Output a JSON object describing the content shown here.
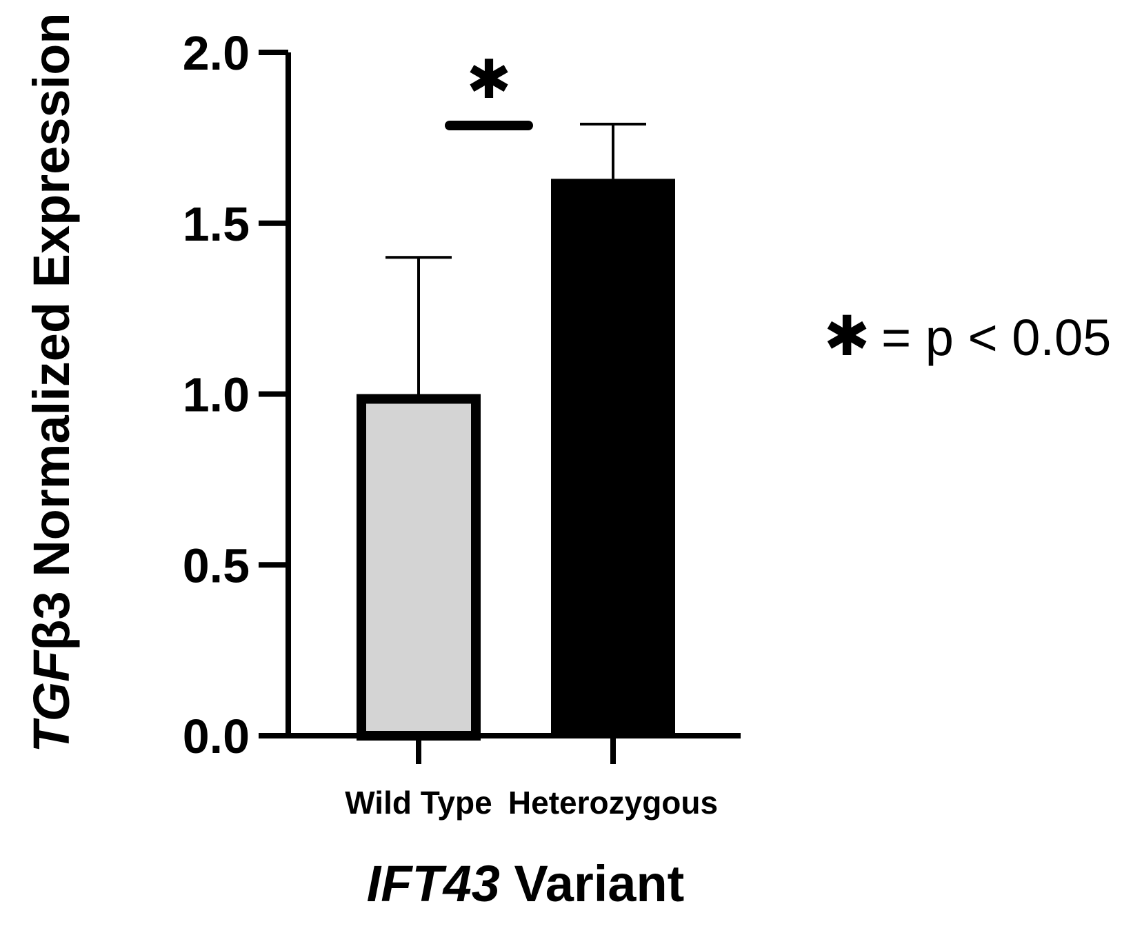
{
  "chart_data": {
    "type": "bar",
    "categories": [
      "Wild Type",
      "Heterozygous"
    ],
    "series": [
      {
        "values": [
          1.0,
          1.63
        ],
        "error_upper": [
          1.4,
          1.79
        ]
      }
    ],
    "bar_colors": [
      "#d4d4d4",
      "#000000"
    ],
    "ylim": [
      0,
      2.0
    ],
    "yticks": [
      "0.0",
      "0.5",
      "1.0",
      "1.5",
      "2.0"
    ],
    "ylabel": {
      "italic_part": "TGF",
      "rest": "β3 Normalized Expression"
    },
    "xlabel": {
      "italic_part": "IFT43",
      "rest": " Variant"
    },
    "significance": {
      "between": [
        "Wild Type",
        "Heterozygous"
      ],
      "marker": "✱"
    },
    "legend": {
      "symbol": "✱",
      "text": "= p < 0.05",
      "position": "right"
    }
  }
}
